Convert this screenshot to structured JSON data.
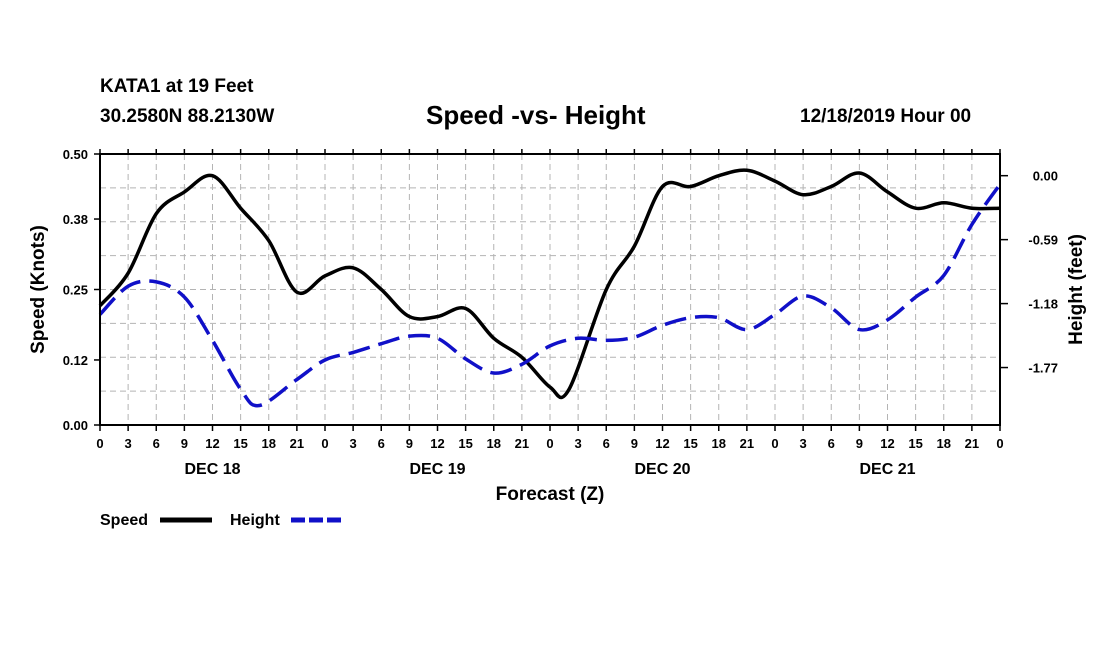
{
  "header": {
    "station": "KATA1 at 19 Feet",
    "coords": "30.2580N 88.2130W",
    "title": "Speed -vs- Height",
    "datetime": "12/18/2019 Hour 00"
  },
  "chart_data": {
    "type": "line",
    "title": "Speed -vs- Height",
    "xlabel": "Forecast (Z)",
    "ylabel": "Speed (Knots)",
    "y2label": "Height (feet)",
    "x_range_hours": [
      0,
      96
    ],
    "x_tick_labels": [
      "0",
      "3",
      "6",
      "9",
      "12",
      "15",
      "18",
      "21",
      "0",
      "3",
      "6",
      "9",
      "12",
      "15",
      "18",
      "21",
      "0",
      "3",
      "6",
      "9",
      "12",
      "15",
      "18",
      "21",
      "0",
      "3",
      "6",
      "9",
      "12",
      "15",
      "18",
      "21",
      "0"
    ],
    "day_labels": [
      {
        "hour": 12,
        "label": "DEC 18"
      },
      {
        "hour": 36,
        "label": "DEC 19"
      },
      {
        "hour": 60,
        "label": "DEC 20"
      },
      {
        "hour": 84,
        "label": "DEC 21"
      }
    ],
    "y_left": {
      "range": [
        0.0,
        0.5
      ],
      "ticks": [
        "0.00",
        "0.12",
        "0.25",
        "0.38",
        "0.50"
      ]
    },
    "y_right": {
      "range": [
        -2.3,
        0.2
      ],
      "ticks": [
        "0.00",
        "-0.59",
        "-1.18",
        "-1.77"
      ],
      "tick_values": [
        0.0,
        -0.59,
        -1.18,
        -1.77
      ]
    },
    "grid": true,
    "series": [
      {
        "name": "Speed",
        "axis": "left",
        "color": "#000000",
        "style": "solid",
        "x": [
          0,
          3,
          6,
          9,
          12,
          15,
          18,
          21,
          24,
          27,
          30,
          33,
          36,
          39,
          42,
          45,
          48,
          50,
          54,
          57,
          60,
          63,
          66,
          69,
          72,
          75,
          78,
          81,
          84,
          87,
          90,
          93,
          96
        ],
        "values": [
          0.22,
          0.28,
          0.39,
          0.43,
          0.46,
          0.4,
          0.34,
          0.245,
          0.275,
          0.29,
          0.25,
          0.2,
          0.2,
          0.215,
          0.16,
          0.125,
          0.07,
          0.065,
          0.25,
          0.33,
          0.44,
          0.44,
          0.46,
          0.47,
          0.45,
          0.425,
          0.44,
          0.465,
          0.43,
          0.4,
          0.41,
          0.4,
          0.4
        ]
      },
      {
        "name": "Height",
        "axis": "right",
        "color": "#1010c8",
        "style": "dashed",
        "x": [
          0,
          3,
          6,
          9,
          12,
          15,
          17,
          21,
          24,
          27,
          30,
          33,
          36,
          39,
          42,
          45,
          48,
          51,
          54,
          57,
          60,
          63,
          66,
          69,
          72,
          75,
          78,
          81,
          84,
          87,
          90,
          93,
          96
        ],
        "values": [
          -1.28,
          -1.02,
          -0.98,
          -1.12,
          -1.52,
          -1.97,
          -2.12,
          -1.88,
          -1.7,
          -1.63,
          -1.55,
          -1.48,
          -1.5,
          -1.69,
          -1.82,
          -1.74,
          -1.57,
          -1.5,
          -1.52,
          -1.49,
          -1.38,
          -1.31,
          -1.31,
          -1.42,
          -1.28,
          -1.11,
          -1.22,
          -1.42,
          -1.33,
          -1.12,
          -0.92,
          -0.45,
          -0.08
        ]
      }
    ],
    "legend": {
      "position": "bottom-left",
      "entries": [
        "Speed",
        "Height"
      ]
    }
  }
}
